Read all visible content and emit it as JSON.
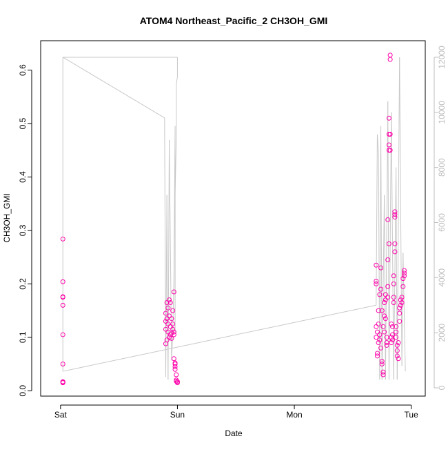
{
  "chart_data": {
    "type": "scatter",
    "title": "ATOM4 Northeast_Pacific_2 CH3OH_GMI",
    "xlabel": "Date",
    "ylabel": "CH3OH_GMI",
    "x_tick_labels": [
      "Sat",
      "Sun",
      "Mon",
      "Tue"
    ],
    "x_tick_days": [
      0,
      1,
      2,
      3
    ],
    "xlim_days": [
      -0.17,
      3.12
    ],
    "ylim": [
      -0.01,
      0.655
    ],
    "y_ticks": [
      0.0,
      0.1,
      0.2,
      0.3,
      0.4,
      0.5,
      0.6
    ],
    "y_tick_labels": [
      "0.0",
      "0.1",
      "0.2",
      "0.3",
      "0.4",
      "0.5",
      "0.6"
    ],
    "y2lim": [
      -300,
      12600
    ],
    "y2_ticks": [
      0,
      2000,
      4000,
      6000,
      8000,
      10000,
      12000
    ],
    "y2_tick_labels": [
      "0",
      "2000",
      "4000",
      "6000",
      "8000",
      "10000",
      "12000"
    ],
    "grid": false,
    "colors": {
      "points": "#ff00aa",
      "altitude_line": "#c8c8c8",
      "axis": "#000000",
      "axis2": "#bdbdbd"
    },
    "series": [
      {
        "marker": "circle-open",
        "color": "#ff00aa",
        "points": [
          [
            0.02,
            0.016
          ],
          [
            0.02,
            0.017
          ],
          [
            0.02,
            0.015
          ],
          [
            0.02,
            0.05
          ],
          [
            0.02,
            0.105
          ],
          [
            0.02,
            0.16
          ],
          [
            0.02,
            0.175
          ],
          [
            0.02,
            0.176
          ],
          [
            0.02,
            0.204
          ],
          [
            0.02,
            0.284
          ],
          [
            0.9,
            0.088
          ],
          [
            0.9,
            0.115
          ],
          [
            0.9,
            0.13
          ],
          [
            0.9,
            0.145
          ],
          [
            0.91,
            0.095
          ],
          [
            0.91,
            0.165
          ],
          [
            0.91,
            0.135
          ],
          [
            0.92,
            0.125
          ],
          [
            0.92,
            0.11
          ],
          [
            0.92,
            0.155
          ],
          [
            0.93,
            0.17
          ],
          [
            0.93,
            0.1
          ],
          [
            0.93,
            0.14
          ],
          [
            0.94,
            0.105
          ],
          [
            0.94,
            0.165
          ],
          [
            0.94,
            0.12
          ],
          [
            0.95,
            0.135
          ],
          [
            0.95,
            0.108
          ],
          [
            0.95,
            0.098
          ],
          [
            0.96,
            0.115
          ],
          [
            0.96,
            0.15
          ],
          [
            0.96,
            0.125
          ],
          [
            0.97,
            0.11
          ],
          [
            0.97,
            0.185
          ],
          [
            0.97,
            0.06
          ],
          [
            0.97,
            0.105
          ],
          [
            0.98,
            0.052
          ],
          [
            0.98,
            0.05
          ],
          [
            0.98,
            0.045
          ],
          [
            0.98,
            0.04
          ],
          [
            0.99,
            0.03
          ],
          [
            0.99,
            0.02
          ],
          [
            0.99,
            0.018
          ],
          [
            1.0,
            0.017
          ],
          [
            1.0,
            0.015
          ],
          [
            2.7,
            0.235
          ],
          [
            2.7,
            0.205
          ],
          [
            2.7,
            0.2
          ],
          [
            2.7,
            0.12
          ],
          [
            2.7,
            0.1
          ],
          [
            2.71,
            0.11
          ],
          [
            2.71,
            0.07
          ],
          [
            2.71,
            0.065
          ],
          [
            2.72,
            0.09
          ],
          [
            2.72,
            0.125
          ],
          [
            2.72,
            0.15
          ],
          [
            2.73,
            0.18
          ],
          [
            2.73,
            0.105
          ],
          [
            2.73,
            0.095
          ],
          [
            2.74,
            0.23
          ],
          [
            2.74,
            0.19
          ],
          [
            2.74,
            0.08
          ],
          [
            2.75,
            0.055
          ],
          [
            2.75,
            0.05
          ],
          [
            2.75,
            0.15
          ],
          [
            2.76,
            0.035
          ],
          [
            2.76,
            0.03
          ],
          [
            2.76,
            0.12
          ],
          [
            2.77,
            0.14
          ],
          [
            2.77,
            0.165
          ],
          [
            2.77,
            0.11
          ],
          [
            2.78,
            0.17
          ],
          [
            2.78,
            0.18
          ],
          [
            2.78,
            0.135
          ],
          [
            2.79,
            0.09
          ],
          [
            2.79,
            0.1
          ],
          [
            2.79,
            0.085
          ],
          [
            2.8,
            0.32
          ],
          [
            2.8,
            0.245
          ],
          [
            2.8,
            0.195
          ],
          [
            2.8,
            0.175
          ],
          [
            2.81,
            0.45
          ],
          [
            2.81,
            0.46
          ],
          [
            2.81,
            0.48
          ],
          [
            2.81,
            0.51
          ],
          [
            2.81,
            0.275
          ],
          [
            2.82,
            0.62
          ],
          [
            2.82,
            0.628
          ],
          [
            2.82,
            0.48
          ],
          [
            2.82,
            0.45
          ],
          [
            2.83,
            0.125
          ],
          [
            2.83,
            0.1
          ],
          [
            2.83,
            0.09
          ],
          [
            2.84,
            0.105
          ],
          [
            2.84,
            0.12
          ],
          [
            2.84,
            0.095
          ],
          [
            2.85,
            0.175
          ],
          [
            2.85,
            0.165
          ],
          [
            2.85,
            0.2
          ],
          [
            2.85,
            0.215
          ],
          [
            2.86,
            0.33
          ],
          [
            2.86,
            0.325
          ],
          [
            2.86,
            0.335
          ],
          [
            2.86,
            0.275
          ],
          [
            2.86,
            0.26
          ],
          [
            2.87,
            0.12
          ],
          [
            2.87,
            0.11
          ],
          [
            2.87,
            0.1
          ],
          [
            2.88,
            0.085
          ],
          [
            2.88,
            0.075
          ],
          [
            2.88,
            0.065
          ],
          [
            2.89,
            0.06
          ],
          [
            2.89,
            0.09
          ],
          [
            2.9,
            0.13
          ],
          [
            2.9,
            0.145
          ],
          [
            2.9,
            0.155
          ],
          [
            2.91,
            0.16
          ],
          [
            2.91,
            0.17
          ],
          [
            2.92,
            0.165
          ],
          [
            2.92,
            0.175
          ],
          [
            2.93,
            0.195
          ],
          [
            2.93,
            0.21
          ],
          [
            2.94,
            0.22
          ],
          [
            2.94,
            0.215
          ],
          [
            2.94,
            0.225
          ]
        ]
      }
    ],
    "altitude_line": {
      "axis": "right",
      "points": [
        [
          0.02,
          12000
        ],
        [
          0.02,
          12000
        ],
        [
          1.0,
          12000
        ],
        [
          1.0,
          11300
        ],
        [
          0.99,
          11000
        ],
        [
          0.99,
          10500
        ],
        [
          0.99,
          9000
        ],
        [
          0.98,
          7000
        ],
        [
          0.98,
          2000
        ],
        [
          0.98,
          9500
        ],
        [
          0.97,
          4000
        ],
        [
          0.96,
          2000
        ],
        [
          0.95,
          1000
        ],
        [
          0.93,
          9000
        ],
        [
          0.92,
          300
        ],
        [
          0.91,
          7000
        ],
        [
          0.9,
          400
        ],
        [
          0.89,
          9800
        ],
        [
          0.02,
          12000
        ],
        [
          0.02,
          12000
        ],
        [
          0.02,
          600
        ],
        [
          2.7,
          3000
        ],
        [
          2.71,
          9200
        ],
        [
          2.72,
          8500
        ],
        [
          2.73,
          300
        ],
        [
          2.74,
          9500
        ],
        [
          2.75,
          300
        ],
        [
          2.77,
          7000
        ],
        [
          2.78,
          300
        ],
        [
          2.8,
          10400
        ],
        [
          2.81,
          300
        ],
        [
          2.83,
          10000
        ],
        [
          2.85,
          300
        ],
        [
          2.87,
          8000
        ],
        [
          2.88,
          300
        ],
        [
          2.9,
          12000
        ],
        [
          2.92,
          800
        ],
        [
          2.93,
          4900
        ],
        [
          2.95,
          600
        ]
      ]
    }
  }
}
